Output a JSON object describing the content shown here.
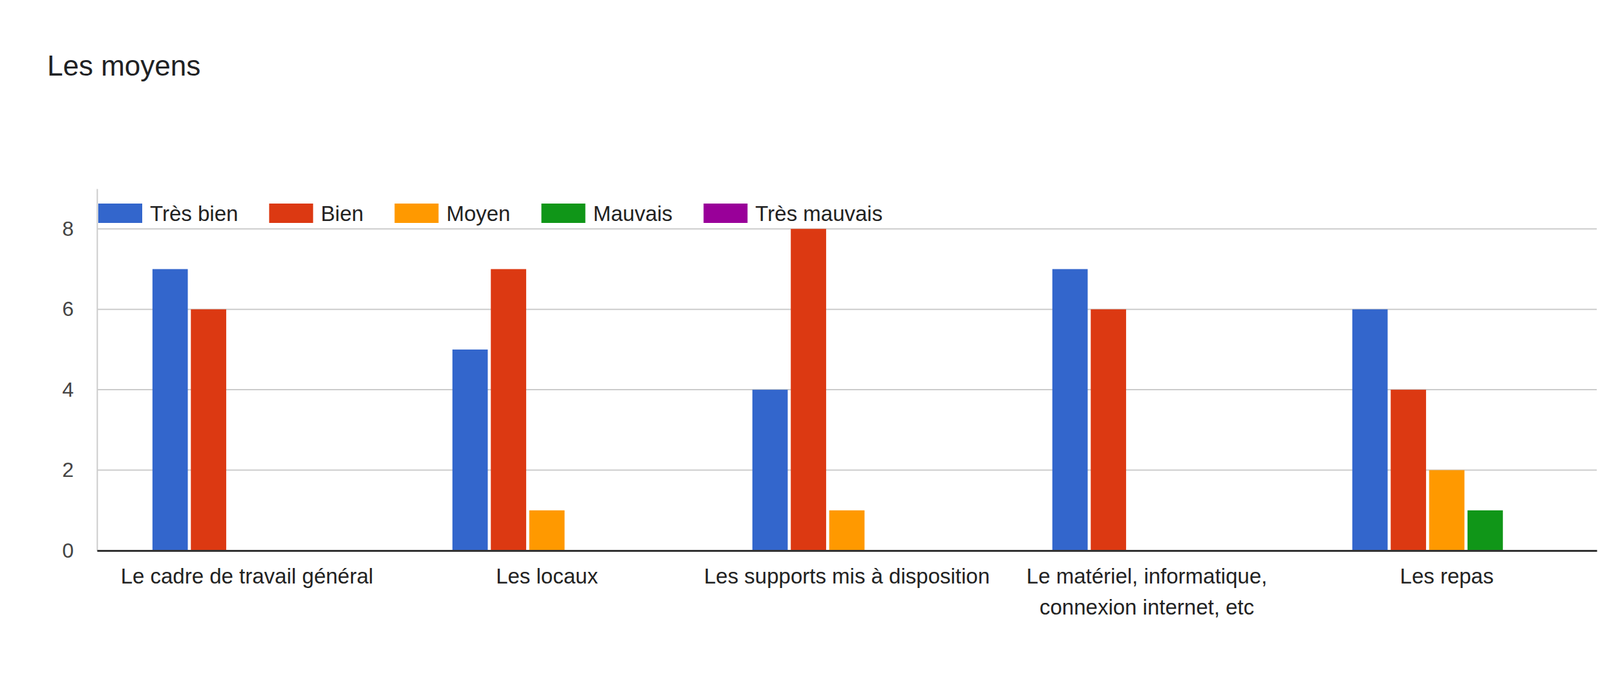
{
  "chart_data": {
    "type": "bar",
    "title": "Les moyens",
    "categories": [
      "Le cadre de travail général",
      "Les locaux",
      "Les supports mis à disposition",
      "Le matériel, informatique, connexion internet, etc",
      "Les repas"
    ],
    "series": [
      {
        "name": "Très bien",
        "color": "#3366cc",
        "values": [
          7,
          5,
          4,
          7,
          6
        ]
      },
      {
        "name": "Bien",
        "color": "#dc3912",
        "values": [
          6,
          7,
          8,
          6,
          4
        ]
      },
      {
        "name": "Moyen",
        "color": "#ff9900",
        "values": [
          0,
          1,
          1,
          0,
          2
        ]
      },
      {
        "name": "Mauvais",
        "color": "#109618",
        "values": [
          0,
          0,
          0,
          0,
          1
        ]
      },
      {
        "name": "Très mauvais",
        "color": "#990099",
        "values": [
          0,
          0,
          0,
          0,
          0
        ]
      }
    ],
    "ylim": [
      0,
      9
    ],
    "yticks": [
      0,
      2,
      4,
      6,
      8
    ],
    "grid": true,
    "legend": "top"
  }
}
